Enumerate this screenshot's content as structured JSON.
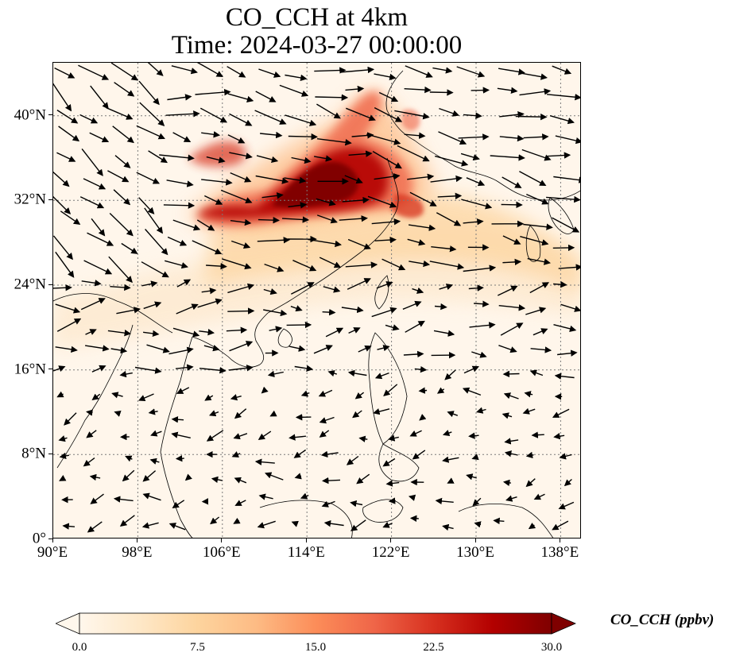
{
  "title_line1": "CO_CCH at 4km",
  "title_line2": "Time: 2024-03-27 00:00:00",
  "map": {
    "lon_range": [
      90,
      140
    ],
    "lat_range": [
      0,
      45
    ],
    "x_ticks": [
      {
        "value": 90,
        "label": "90°E"
      },
      {
        "value": 98,
        "label": "98°E"
      },
      {
        "value": 106,
        "label": "106°E"
      },
      {
        "value": 114,
        "label": "114°E"
      },
      {
        "value": 122,
        "label": "122°E"
      },
      {
        "value": 130,
        "label": "130°E"
      },
      {
        "value": 138,
        "label": "138°E"
      }
    ],
    "y_ticks": [
      {
        "value": 0,
        "label": "0°"
      },
      {
        "value": 8,
        "label": "8°N"
      },
      {
        "value": 16,
        "label": "16°N"
      },
      {
        "value": 24,
        "label": "24°N"
      },
      {
        "value": 32,
        "label": "32°N"
      },
      {
        "value": 40,
        "label": "40°N"
      }
    ],
    "gridlines": true,
    "wind_vectors": true
  },
  "colorbar": {
    "label": "CO_CCH (ppbv)",
    "range": [
      0,
      30
    ],
    "extend": "both",
    "colormap": "OrRd",
    "colors": [
      "#fff7ec",
      "#fee8c8",
      "#fdd49e",
      "#fdbb84",
      "#fc8d59",
      "#ef6548",
      "#d7301f",
      "#b30000",
      "#7f0000"
    ],
    "ticks": [
      "0.0",
      "7.5",
      "15.0",
      "22.5",
      "30.0"
    ]
  }
}
